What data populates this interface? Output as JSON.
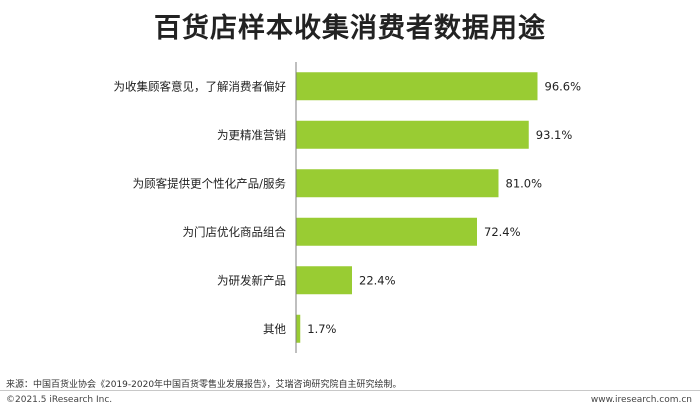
{
  "title": "百货店样本收集消费者数据用途",
  "chart_data": {
    "type": "bar",
    "orientation": "horizontal",
    "categories": [
      "为收集顾客意见，了解消费者偏好",
      "为更精准营销",
      "为顾客提供更个性化产品/服务",
      "为门店优化商品组合",
      "为研发新产品",
      "其他"
    ],
    "values": [
      96.6,
      93.1,
      81.0,
      72.4,
      22.4,
      1.7
    ],
    "value_labels": [
      "96.6%",
      "93.1%",
      "81.0%",
      "72.4%",
      "22.4%",
      "1.7%"
    ],
    "xlim": [
      0,
      100
    ],
    "grid": false,
    "legend": "none",
    "bar_color": "#99cc33",
    "axis_color": "#7f7f7f"
  },
  "footer": {
    "source": "来源：中国百货业协会《2019-2020年中国百货零售业发展报告》，艾瑞咨询研究院自主研究绘制。",
    "copyright": "©2021.5 iResearch Inc.",
    "website": "www.iresearch.com.cn"
  }
}
